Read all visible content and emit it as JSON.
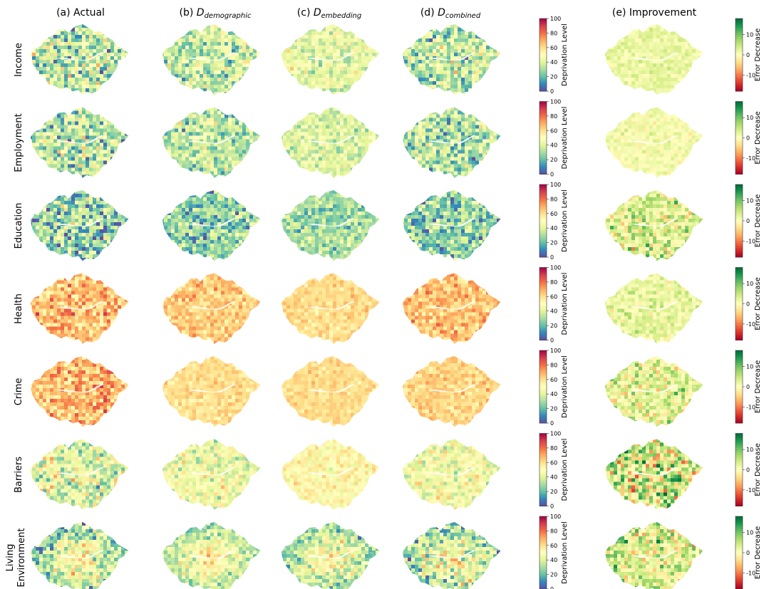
{
  "columns": [
    {
      "prefix": "(a) Actual",
      "symbol": "",
      "subscript": ""
    },
    {
      "prefix": "(b) ",
      "symbol": "D",
      "subscript": "demographic"
    },
    {
      "prefix": "(c) ",
      "symbol": "D",
      "subscript": "embedding"
    },
    {
      "prefix": "(d) ",
      "symbol": "D",
      "subscript": "combined"
    },
    {
      "prefix": "(e) Improvement",
      "symbol": "",
      "subscript": ""
    }
  ],
  "rows": [
    {
      "label": [
        "Income"
      ],
      "levels": {
        "actual": 35,
        "demographic": 36,
        "embedding": 42,
        "combined": 34
      },
      "spread": {
        "actual": 20,
        "demographic": 16,
        "embedding": 11,
        "combined": 18
      },
      "improvement": {
        "mean": 2,
        "spread": 2
      }
    },
    {
      "label": [
        "Employment"
      ],
      "levels": {
        "actual": 34,
        "demographic": 34,
        "embedding": 40,
        "combined": 33
      },
      "spread": {
        "actual": 19,
        "demographic": 15,
        "embedding": 10,
        "combined": 17
      },
      "improvement": {
        "mean": 1,
        "spread": 2
      }
    },
    {
      "label": [
        "Education"
      ],
      "levels": {
        "actual": 27,
        "demographic": 27,
        "embedding": 30,
        "combined": 26
      },
      "spread": {
        "actual": 20,
        "demographic": 15,
        "embedding": 11,
        "combined": 17
      },
      "improvement": {
        "mean": 3,
        "spread": 6
      }
    },
    {
      "label": [
        "Health"
      ],
      "levels": {
        "actual": 66,
        "demographic": 64,
        "embedding": 60,
        "combined": 66
      },
      "spread": {
        "actual": 13,
        "demographic": 9,
        "embedding": 6,
        "combined": 10
      },
      "improvement": {
        "mean": 2,
        "spread": 3
      }
    },
    {
      "label": [
        "Crime"
      ],
      "levels": {
        "actual": 68,
        "demographic": 60,
        "embedding": 60,
        "combined": 62
      },
      "spread": {
        "actual": 13,
        "demographic": 6,
        "embedding": 5,
        "combined": 7
      },
      "improvement": {
        "mean": 2,
        "spread": 5
      }
    },
    {
      "label": [
        "Barriers"
      ],
      "levels": {
        "actual": 42,
        "demographic": 45,
        "embedding": 52,
        "combined": 46
      },
      "spread": {
        "actual": 18,
        "demographic": 12,
        "embedding": 8,
        "combined": 12
      },
      "improvement": {
        "mean": 3,
        "spread": 9
      }
    },
    {
      "label": [
        "Living",
        "Environment"
      ],
      "levels": {
        "actual": 38,
        "demographic": 40,
        "embedding": 38,
        "combined": 37
      },
      "spread": {
        "actual": 18,
        "demographic": 12,
        "embedding": 15,
        "combined": 18
      },
      "improvement": {
        "mean": 3,
        "spread": 7
      }
    }
  ],
  "chart_data": [
    {
      "type": "heatmap",
      "description_key": "deprivation",
      "ylabel": "Deprivation Level",
      "ylim": [
        0,
        100
      ],
      "ticks": [
        0,
        20,
        40,
        60,
        80,
        100
      ],
      "colormap": "Spectral_r",
      "colors": [
        "#5e4fa2",
        "#3288bd",
        "#66c2a5",
        "#abdda4",
        "#e6f598",
        "#ffffbf",
        "#fee08b",
        "#fdae61",
        "#f46d43",
        "#d53e4f",
        "#9e0142"
      ]
    },
    {
      "type": "heatmap",
      "description_key": "improvement",
      "ylabel": "Error Decrease",
      "ylim": [
        -18,
        18
      ],
      "ticks": [
        -10,
        0,
        10
      ],
      "colormap": "RdYlGn",
      "colors": [
        "#a50026",
        "#d73027",
        "#f46d43",
        "#fdae61",
        "#fee08b",
        "#ffffbf",
        "#d9ef8b",
        "#a6d96a",
        "#66bd63",
        "#1a9850",
        "#006837"
      ]
    }
  ]
}
